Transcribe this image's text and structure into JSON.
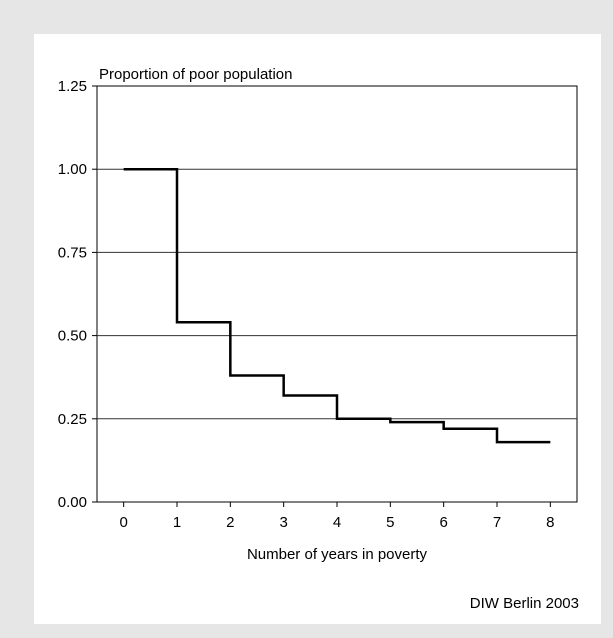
{
  "chart_data": {
    "type": "line",
    "step": true,
    "ylabel": "Proportion of poor population",
    "xlabel": "Number of years in poverty",
    "x_ticks": [
      "0",
      "1",
      "2",
      "3",
      "4",
      "5",
      "6",
      "7",
      "8"
    ],
    "y_ticks": [
      "0.00",
      "0.25",
      "0.50",
      "0.75",
      "1.00",
      "1.25"
    ],
    "xlim": [
      -0.5,
      8.5
    ],
    "ylim": [
      0,
      1.25
    ],
    "grid": "horizontal",
    "series": [
      {
        "x": [
          0,
          1,
          2,
          3,
          4,
          5,
          6,
          7,
          8
        ],
        "values": [
          1.0,
          0.54,
          0.38,
          0.32,
          0.25,
          0.24,
          0.22,
          0.18,
          0.18
        ]
      }
    ]
  },
  "source": "DIW Berlin 2003"
}
